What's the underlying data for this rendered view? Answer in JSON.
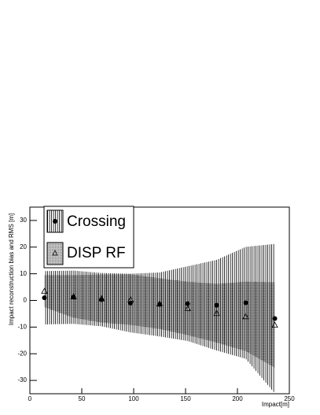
{
  "chart_data": {
    "type": "scatter",
    "x_label": "Impact[m]",
    "y_label": "Impact reconstruction bias and RMS [m]",
    "xlim": [
      0,
      250
    ],
    "xticks": [
      0,
      50,
      100,
      150,
      200,
      250
    ],
    "ylim": [
      -35,
      35
    ],
    "yticks": [
      -30,
      -20,
      -10,
      0,
      10,
      20,
      30
    ],
    "series": [
      {
        "name": "Crossing",
        "color": "#000000",
        "marker": "circle",
        "band": "hatched",
        "x": [
          14,
          42,
          69,
          97,
          125,
          152,
          180,
          208,
          236
        ],
        "values": [
          1,
          1.2,
          0.3,
          -1,
          -1.5,
          -1.2,
          -1.8,
          -0.9,
          -6.8
        ],
        "errors": [
          10,
          10,
          10,
          11,
          12,
          14,
          17,
          21,
          28
        ]
      },
      {
        "name": "DISP RF",
        "color": "#000000",
        "marker": "triangle",
        "band": "dotted",
        "x": [
          14,
          42,
          69,
          97,
          125,
          152,
          180,
          208,
          236
        ],
        "values": [
          3.5,
          1.5,
          0.7,
          0.3,
          -1.2,
          -3,
          -4.8,
          -6,
          -9.2
        ],
        "errors": [
          6,
          8,
          9,
          9.5,
          9.5,
          10,
          11,
          13,
          16
        ]
      }
    ]
  }
}
